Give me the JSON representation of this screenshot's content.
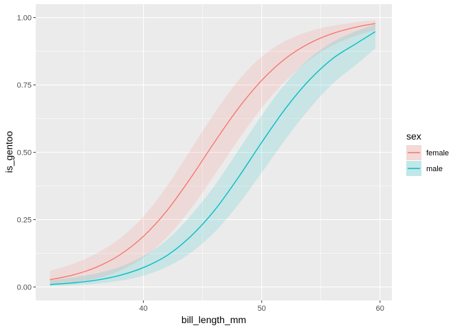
{
  "chart_data": {
    "type": "line",
    "title": "",
    "xlabel": "bill_length_mm",
    "ylabel": "is_gentoo",
    "xlim": [
      30.9,
      61.0
    ],
    "ylim": [
      -0.05,
      1.05
    ],
    "x_ticks": [
      40,
      50,
      60
    ],
    "y_ticks": [
      0.0,
      0.25,
      0.5,
      0.75,
      1.0
    ],
    "y_tick_labels": [
      "0.00",
      "0.25",
      "0.50",
      "0.75",
      "1.00"
    ],
    "grid": true,
    "legend": {
      "title": "sex",
      "placement": "right"
    },
    "series": [
      {
        "name": "female",
        "color": "#f8766d",
        "x": [
          32.1,
          34,
          36,
          38,
          40,
          42,
          44,
          46,
          48,
          50,
          52,
          54,
          56,
          58,
          59.6
        ],
        "y": [
          0.027,
          0.044,
          0.073,
          0.119,
          0.188,
          0.284,
          0.405,
          0.537,
          0.662,
          0.767,
          0.848,
          0.904,
          0.941,
          0.965,
          0.978
        ],
        "lower": [
          0.008,
          0.015,
          0.031,
          0.06,
          0.109,
          0.185,
          0.29,
          0.415,
          0.545,
          0.665,
          0.764,
          0.842,
          0.897,
          0.933,
          0.953
        ],
        "upper": [
          0.06,
          0.085,
          0.124,
          0.18,
          0.262,
          0.375,
          0.51,
          0.645,
          0.765,
          0.855,
          0.913,
          0.949,
          0.97,
          0.983,
          0.99
        ]
      },
      {
        "name": "male",
        "color": "#00bfc4",
        "x": [
          32.1,
          34,
          36,
          38,
          40,
          42,
          44,
          46,
          48,
          50,
          52,
          54,
          56,
          58,
          59.6
        ],
        "y": [
          0.009,
          0.015,
          0.025,
          0.043,
          0.072,
          0.117,
          0.188,
          0.284,
          0.405,
          0.537,
          0.662,
          0.767,
          0.848,
          0.904,
          0.948
        ],
        "lower": [
          0.003,
          0.006,
          0.012,
          0.023,
          0.042,
          0.075,
          0.127,
          0.203,
          0.305,
          0.425,
          0.548,
          0.66,
          0.755,
          0.826,
          0.885
        ],
        "upper": [
          0.025,
          0.035,
          0.05,
          0.075,
          0.115,
          0.175,
          0.265,
          0.375,
          0.505,
          0.637,
          0.755,
          0.847,
          0.91,
          0.95,
          0.975
        ]
      }
    ]
  }
}
